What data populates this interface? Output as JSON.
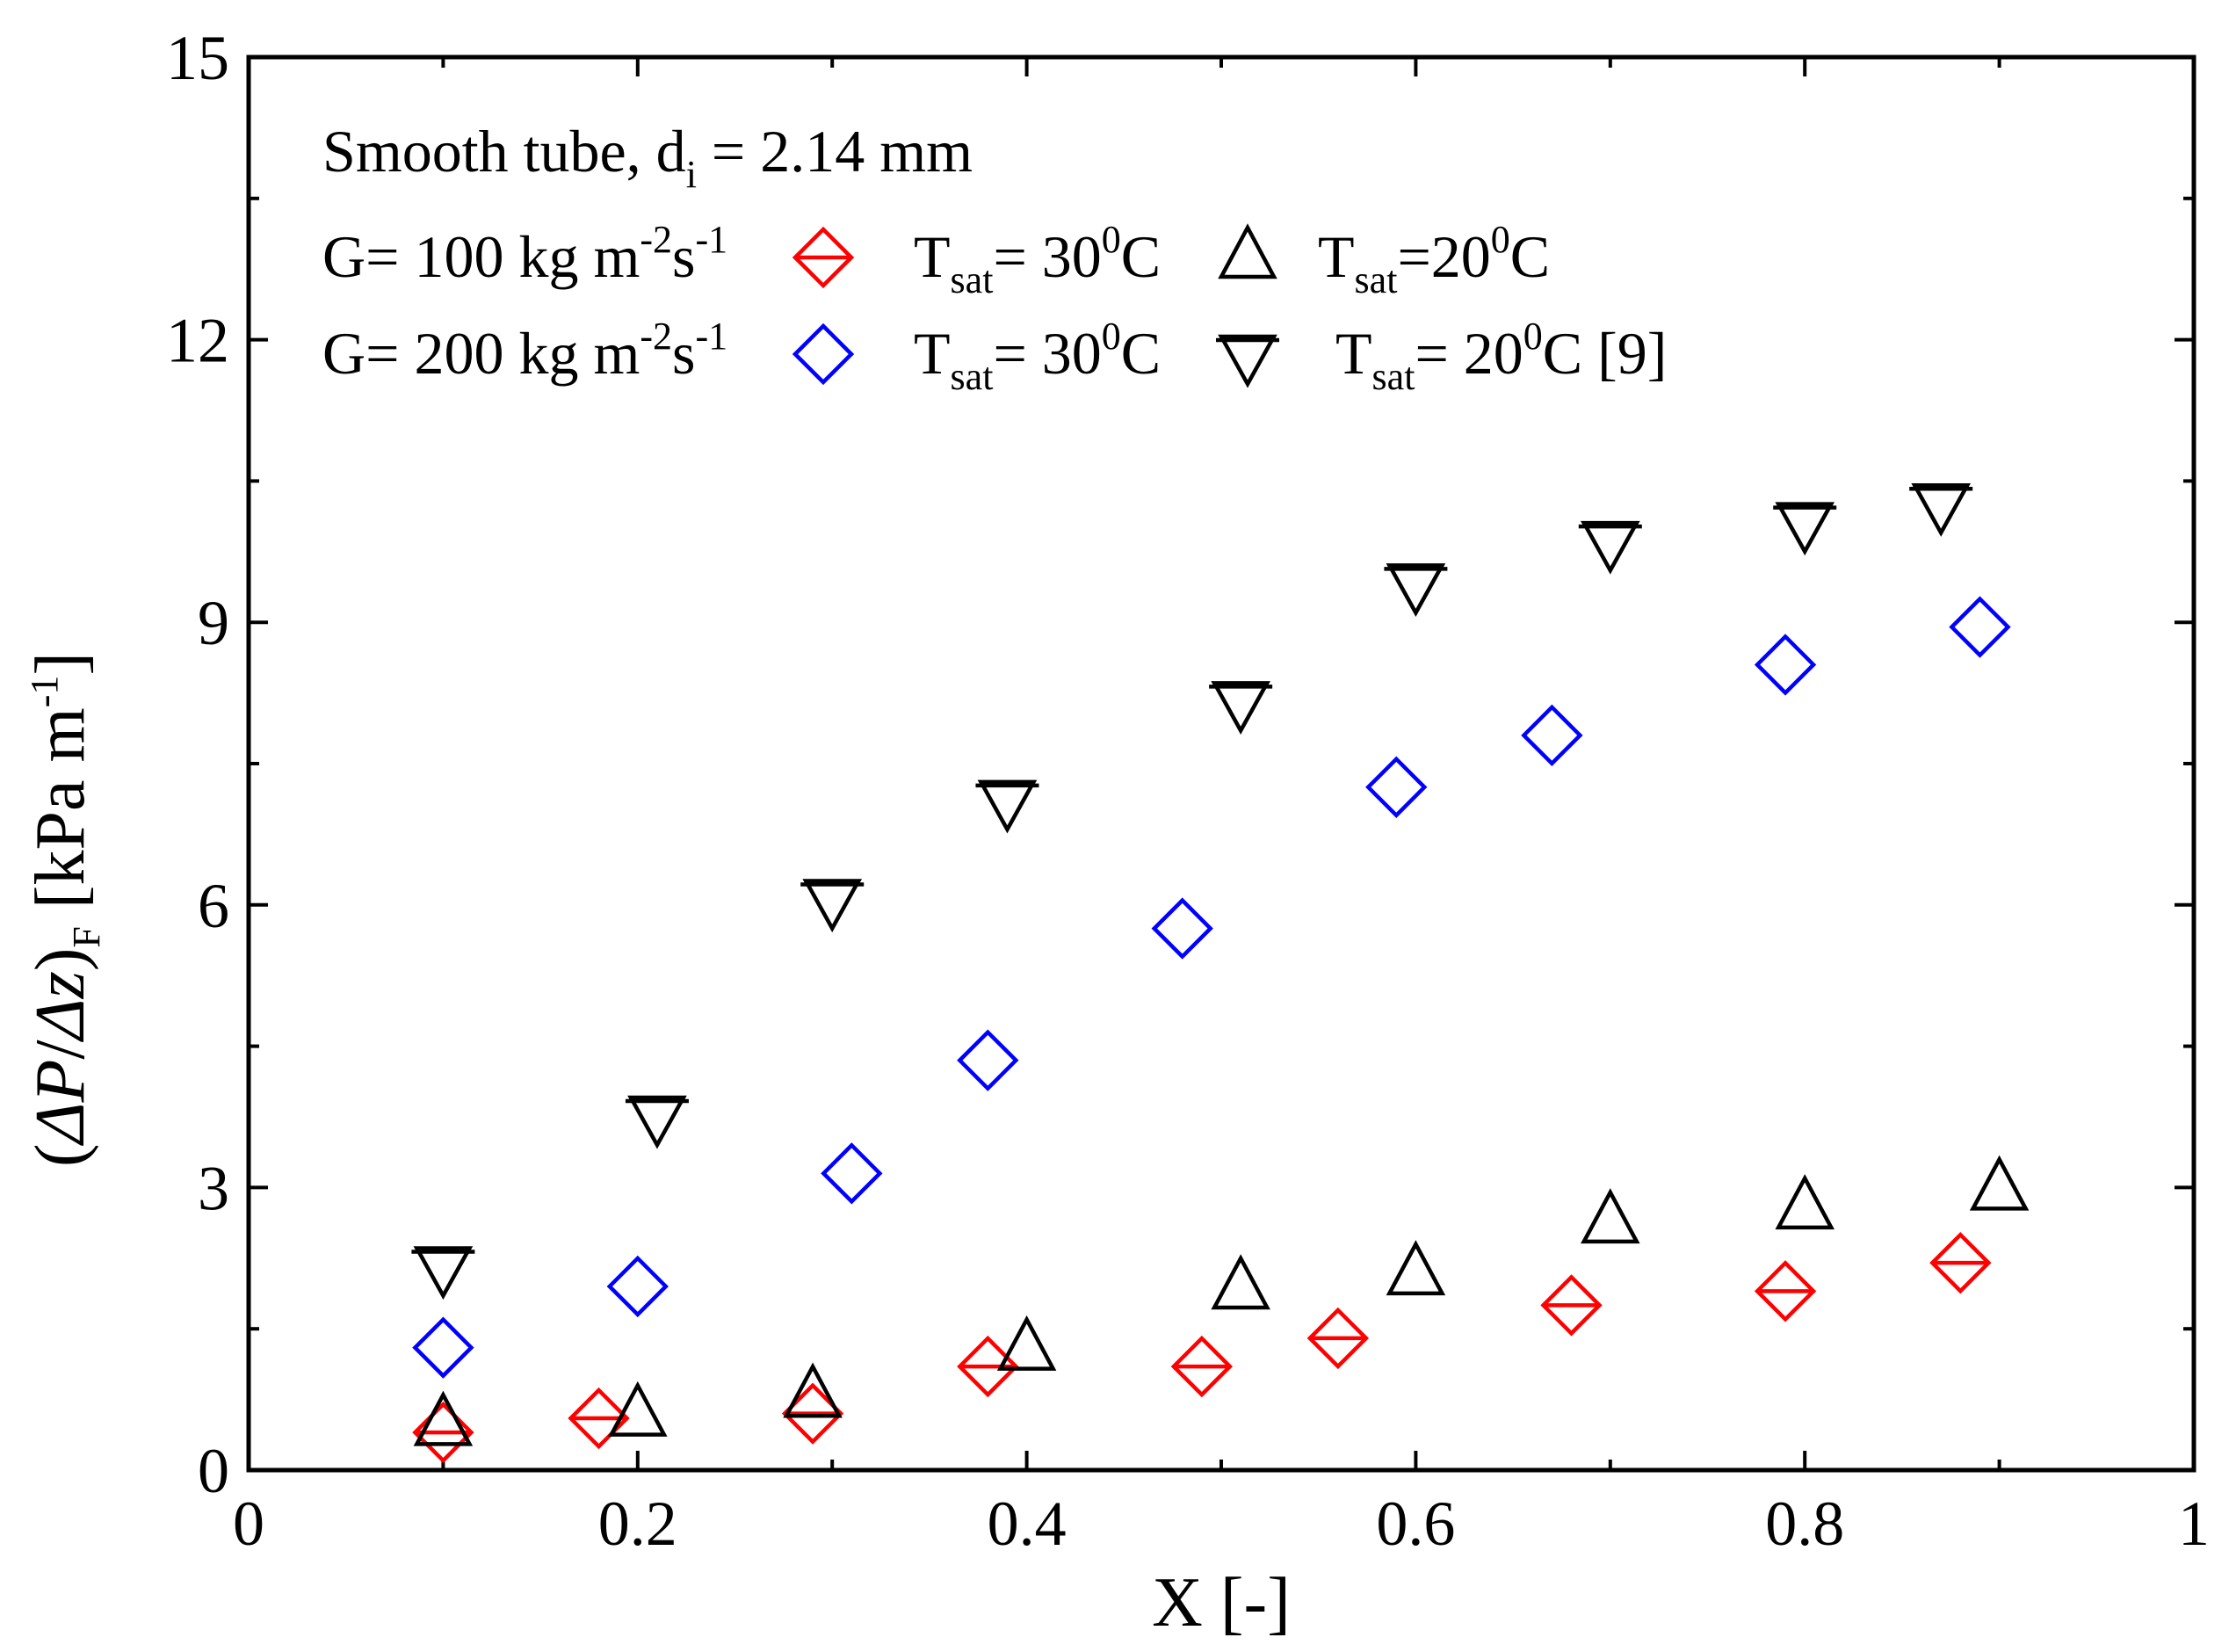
{
  "chart_data": {
    "type": "scatter",
    "xlabel": "X [-]",
    "ylabel": {
      "open": "(",
      "num": "ΔP",
      "slash": "/",
      "den": "Δz",
      "close": ")",
      "sub": "F",
      "unit": " [kPa m",
      "unit_sup": "-1",
      "unit_end": "]"
    },
    "xlim": [
      0,
      1
    ],
    "ylim": [
      0,
      15
    ],
    "x_ticks": [
      0,
      0.2,
      0.4,
      0.6,
      0.8,
      1
    ],
    "x_tick_labels": [
      "0",
      "0.2",
      "0.4",
      "0.6",
      "0.8",
      "1"
    ],
    "y_ticks": [
      0,
      3,
      6,
      9,
      12,
      15
    ],
    "y_tick_labels": [
      "0",
      "3",
      "6",
      "9",
      "12",
      "15"
    ],
    "annotation": {
      "main": "Smooth tube, d",
      "sub": "i",
      "rest": " = 2.14 mm"
    },
    "legend_rows": [
      {
        "label": "G= 100 kg m",
        "sup1": "-2",
        "mid": "s",
        "sup2": "-1"
      },
      {
        "label": "G= 200 kg m",
        "sup1": "-2",
        "mid": "s",
        "sup2": "-1"
      }
    ],
    "series": [
      {
        "name": "G=100, Tsat=30C",
        "marker": "diamond-line",
        "color": "#ff0000",
        "legend": {
          "t": "T",
          "sub": "sat",
          "eq": "= 30",
          "sup": "0",
          "c": "C",
          "ref": ""
        },
        "x": [
          0.1,
          0.18,
          0.29,
          0.38,
          0.49,
          0.56,
          0.68,
          0.79,
          0.88
        ],
        "y": [
          0.4,
          0.55,
          0.6,
          1.1,
          1.1,
          1.4,
          1.75,
          1.9,
          2.2
        ]
      },
      {
        "name": "G=100, Tsat=20C",
        "marker": "triangle-up",
        "color": "#000000",
        "legend": {
          "t": "T",
          "sub": "sat",
          "eq": "=20",
          "sup": "0",
          "c": "C",
          "ref": ""
        },
        "x": [
          0.1,
          0.2,
          0.29,
          0.4,
          0.51,
          0.6,
          0.7,
          0.8,
          0.9
        ],
        "y": [
          0.5,
          0.6,
          0.8,
          1.3,
          1.95,
          2.1,
          2.65,
          2.8,
          3.0
        ]
      },
      {
        "name": "G=200, Tsat=30C",
        "marker": "diamond",
        "color": "#0000ff",
        "legend": {
          "t": "T",
          "sub": "sat",
          "eq": "= 30",
          "sup": "0",
          "c": "C",
          "ref": ""
        },
        "x": [
          0.1,
          0.2,
          0.31,
          0.38,
          0.48,
          0.59,
          0.67,
          0.79,
          0.89
        ],
        "y": [
          1.3,
          1.95,
          3.15,
          4.35,
          5.75,
          7.25,
          7.8,
          8.55,
          8.95
        ]
      },
      {
        "name": "G=200, Tsat=20C [9]",
        "marker": "triangle-down-line",
        "color": "#000000",
        "legend": {
          "t": "T",
          "sub": "sat",
          "eq": "= 20",
          "sup": "0",
          "c": "C",
          "ref": " [9]"
        },
        "x": [
          0.1,
          0.21,
          0.3,
          0.39,
          0.51,
          0.6,
          0.7,
          0.8,
          0.87
        ],
        "y": [
          2.15,
          3.75,
          6.05,
          7.1,
          8.15,
          9.4,
          9.85,
          10.05,
          10.25
        ]
      }
    ]
  }
}
